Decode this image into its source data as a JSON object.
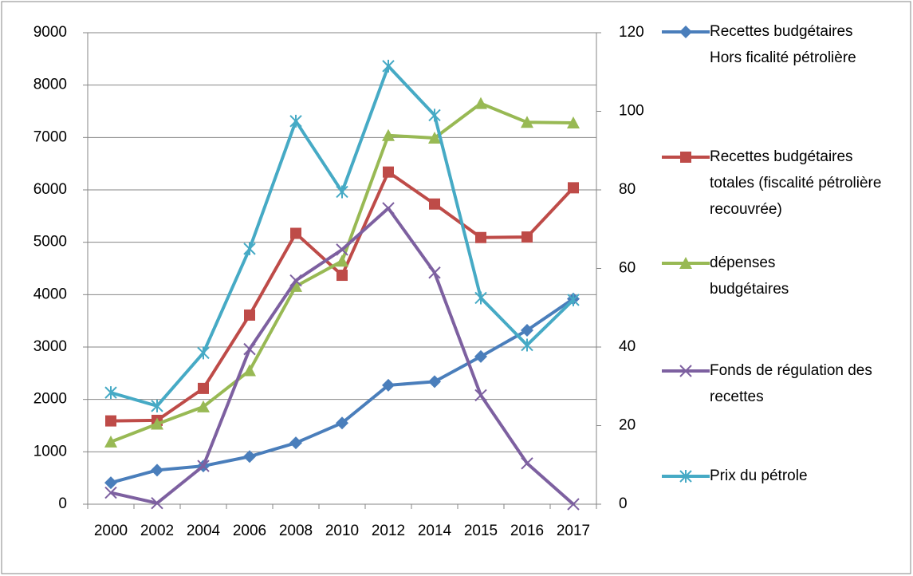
{
  "chart_data": {
    "type": "line",
    "categories": [
      "2000",
      "2002",
      "2004",
      "2006",
      "2008",
      "2010",
      "2012",
      "2014",
      "2015",
      "2016",
      "2017"
    ],
    "ylim": [
      0,
      9000
    ],
    "yticks": [
      0,
      1000,
      2000,
      3000,
      4000,
      5000,
      6000,
      7000,
      8000,
      9000
    ],
    "y2lim": [
      0,
      120
    ],
    "y2ticks": [
      0,
      20,
      40,
      60,
      80,
      100,
      120
    ],
    "grid": true,
    "legend": "right",
    "series": [
      {
        "name": "Recettes budgétaires Hors ficalité pétrolière",
        "color": "#4a7ebb",
        "marker": "diamond",
        "values": [
          410,
          650,
          730,
          910,
          1170,
          1550,
          2270,
          2340,
          2820,
          3320,
          3920
        ]
      },
      {
        "name": "Recettes budgétaires totales (fiscalité pétrolière recouvrée)",
        "color": "#be4b48",
        "marker": "square",
        "values": [
          1590,
          1600,
          2210,
          3610,
          5170,
          4370,
          6340,
          5730,
          5090,
          5100,
          6040
        ]
      },
      {
        "name": "dépenses budgétaires",
        "color": "#98b954",
        "marker": "triangle",
        "values": [
          1190,
          1530,
          1860,
          2550,
          4160,
          4640,
          7040,
          6990,
          7650,
          7290,
          7280
        ]
      },
      {
        "name": "Fonds de régulation des recettes",
        "color": "#7d60a0",
        "marker": "x",
        "values": [
          220,
          20,
          730,
          2960,
          4270,
          4860,
          5650,
          4420,
          2080,
          780,
          0
        ]
      },
      {
        "name": "Prix du pétrole",
        "color": "#46aac5",
        "marker": "star",
        "axis": "y2",
        "values": [
          28.4,
          25,
          38.5,
          65,
          97.5,
          79.5,
          111.5,
          99,
          52.5,
          40.5,
          52
        ]
      }
    ]
  }
}
